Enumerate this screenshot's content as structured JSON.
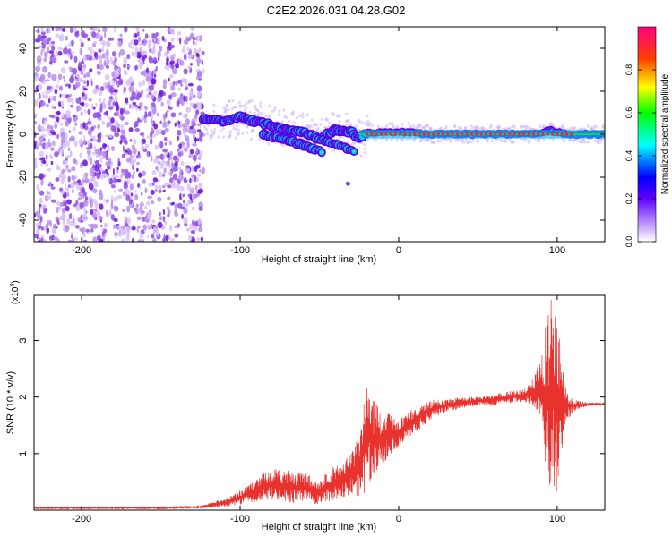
{
  "figure": {
    "title": "C2E2.2026.031.04.28.G02"
  },
  "chart_data": [
    {
      "type": "heatmap",
      "xlabel": "Height of straight line (km)",
      "ylabel": "Frequency (Hz)",
      "xlim": [
        -230,
        130
      ],
      "ylim": [
        -50,
        50
      ],
      "xticks": [
        -200,
        -100,
        0,
        100
      ],
      "yticks": [
        -40,
        -20,
        0,
        20,
        40
      ],
      "grid": false,
      "colorbar": {
        "label": "Normalized spectral amplitude",
        "range": [
          0,
          1
        ],
        "ticks": [
          0.0,
          0.2,
          0.4,
          0.6,
          0.8
        ],
        "tick_labels": [
          "0.0",
          "0.2",
          "0.4",
          "0.6",
          "0.8"
        ],
        "colors": [
          "#ffffff",
          "#8000ff",
          "#0000ff",
          "#00ffff",
          "#00ff00",
          "#ffff00",
          "#ff8000",
          "#ff0000",
          "#ff00ff"
        ]
      },
      "noise_region": {
        "x": [
          -230,
          -123
        ],
        "y": [
          -50,
          50
        ]
      },
      "signal_track": {
        "x": [
          -123,
          -110,
          -100,
          -90,
          -80,
          -70,
          -60,
          -50,
          -40,
          -30,
          -25,
          -20,
          -10,
          0,
          10,
          20,
          40,
          60,
          80,
          90,
          95,
          100,
          110,
          130
        ],
        "y": [
          7,
          6,
          8,
          6,
          4,
          2,
          1,
          -2,
          2,
          1,
          -2,
          1,
          1,
          1,
          1,
          0,
          0,
          0,
          0,
          0,
          2,
          1,
          0,
          0
        ]
      },
      "branch_tracks": [
        {
          "x": [
            -85,
            -75,
            -65,
            -55,
            -48
          ],
          "y": [
            0,
            -2,
            -4,
            -7,
            -8
          ]
        },
        {
          "x": [
            -52,
            -42,
            -35,
            -28
          ],
          "y": [
            -2,
            -4,
            -6,
            -8
          ]
        }
      ],
      "isolated_points": [
        {
          "x": -32,
          "y": -23
        }
      ]
    },
    {
      "type": "line",
      "xlabel": "Height of straight line (km)",
      "ylabel": "SNR (10 * v/v)",
      "y_multiplier": "(x10",
      "y_multiplier_exp": "4",
      "y_multiplier_close": ")",
      "xlim": [
        -230,
        130
      ],
      "ylim": [
        0,
        3.8
      ],
      "xticks": [
        -200,
        -100,
        0,
        100
      ],
      "yticks": [
        1,
        2,
        3
      ],
      "grid": false,
      "color": "#e8322e",
      "envelope": {
        "x": [
          -230,
          -150,
          -125,
          -110,
          -100,
          -90,
          -80,
          -70,
          -60,
          -50,
          -40,
          -30,
          -25,
          -20,
          -15,
          -10,
          -5,
          0,
          10,
          20,
          30,
          40,
          50,
          60,
          70,
          80,
          85,
          90,
          92,
          95,
          97,
          100,
          102,
          105,
          110,
          120,
          130
        ],
        "low": [
          0.02,
          0.02,
          0.03,
          0.06,
          0.1,
          0.15,
          0.2,
          0.12,
          0.15,
          0.1,
          0.2,
          0.25,
          0.15,
          0.35,
          0.6,
          0.8,
          1.0,
          1.1,
          1.35,
          1.6,
          1.75,
          1.8,
          1.85,
          1.85,
          1.9,
          1.9,
          1.85,
          1.6,
          0.8,
          0.3,
          0.2,
          0.3,
          0.8,
          1.5,
          1.75,
          1.85,
          1.85
        ],
        "high": [
          0.06,
          0.06,
          0.08,
          0.2,
          0.35,
          0.55,
          0.75,
          0.7,
          0.65,
          0.55,
          0.8,
          1.0,
          1.35,
          2.25,
          1.9,
          1.75,
          1.75,
          1.65,
          1.8,
          1.95,
          1.95,
          2.0,
          2.0,
          2.05,
          2.1,
          2.15,
          2.35,
          2.7,
          3.2,
          3.75,
          3.75,
          3.7,
          2.9,
          2.2,
          1.95,
          1.9,
          1.9
        ]
      }
    }
  ]
}
